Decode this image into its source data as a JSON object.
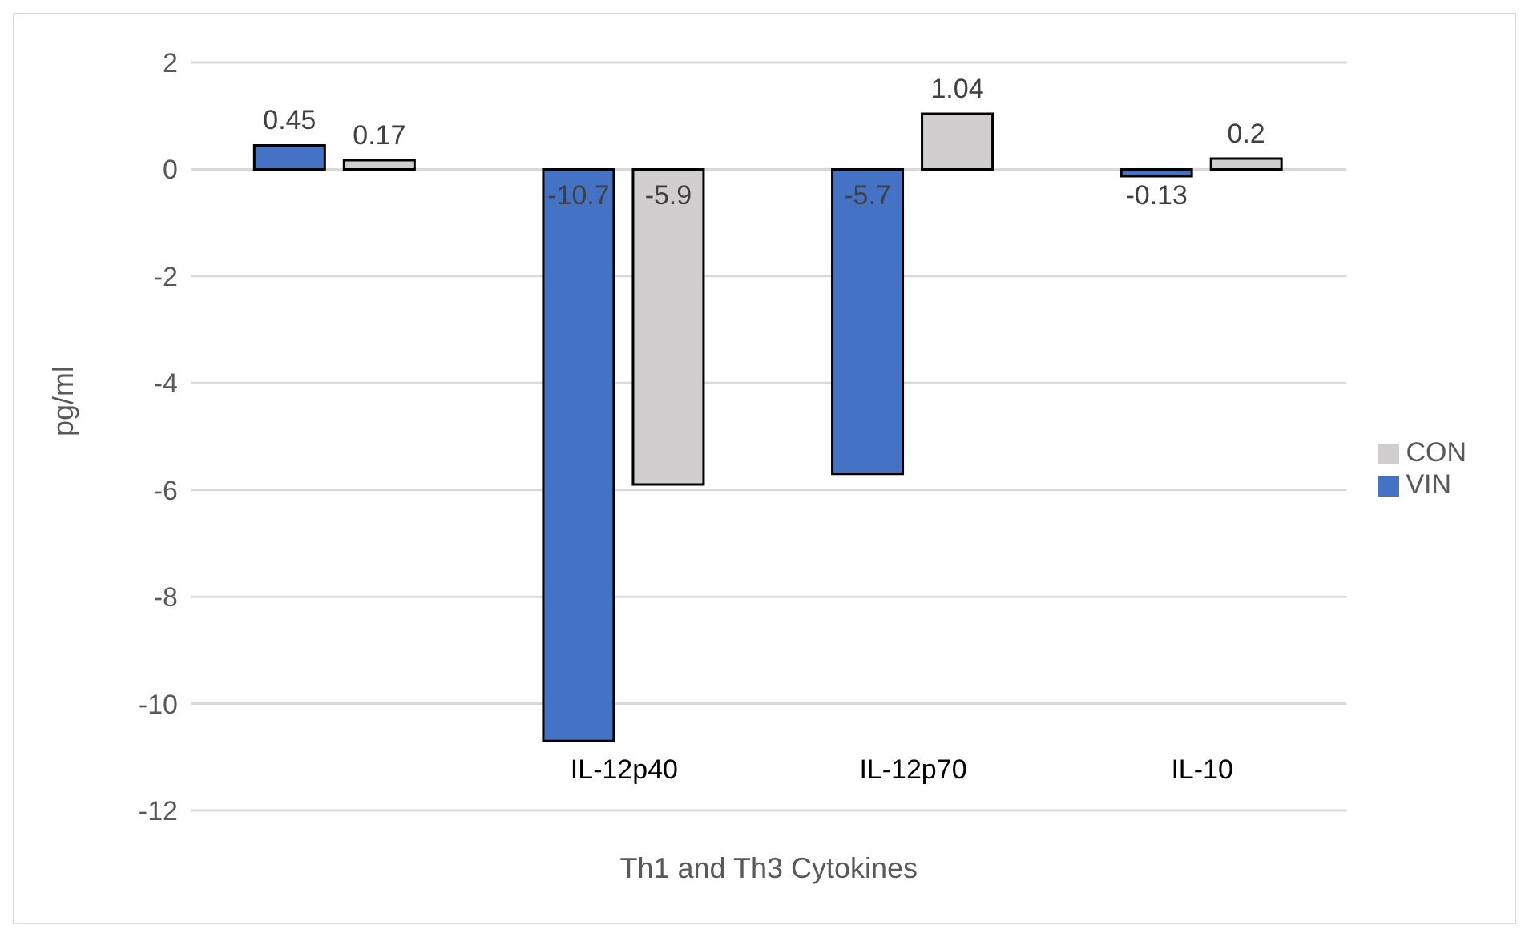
{
  "chart_data": {
    "type": "bar",
    "xlabel": "Th1 and Th3 Cytokines",
    "ylabel": "pg/ml",
    "categories": [
      null,
      "IL-12p40",
      "IL-12p70",
      "IL-10"
    ],
    "series": [
      {
        "name": "VIN",
        "color": "#4472c4",
        "values": [
          0.45,
          -10.7,
          -5.7,
          -0.13
        ]
      },
      {
        "name": "CON",
        "color": "#d0cece",
        "values": [
          0.17,
          -5.9,
          1.04,
          0.2
        ]
      }
    ],
    "ylim": [
      -12,
      2
    ],
    "yticks": [
      -12,
      -10,
      -8,
      -6,
      -4,
      -2,
      0,
      2
    ],
    "grid": "y",
    "legend": "right",
    "data_labels": true
  }
}
